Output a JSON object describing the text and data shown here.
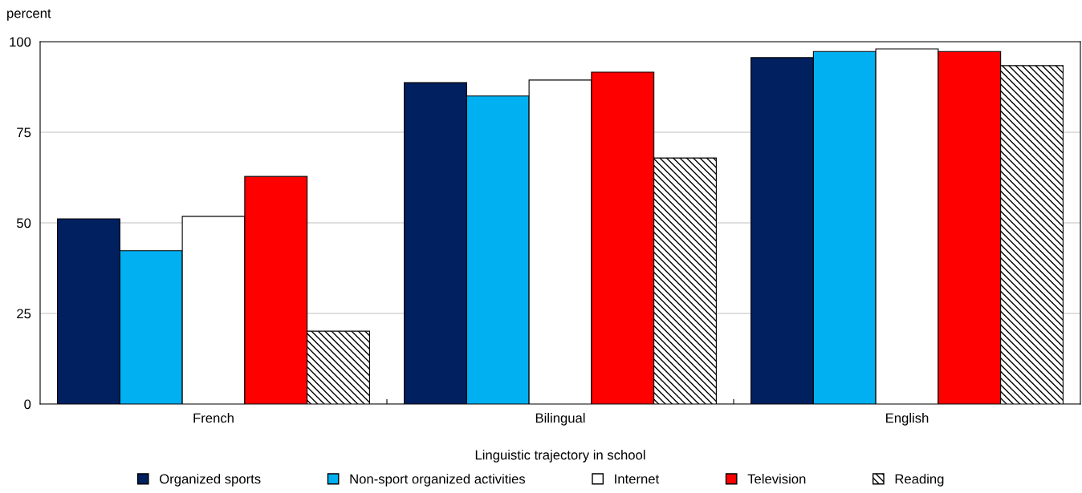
{
  "chart_data": {
    "type": "bar",
    "ylabel": "percent",
    "xlabel": "Linguistic trajectory in school",
    "categories": [
      "French",
      "Bilingual",
      "English"
    ],
    "series": [
      {
        "name": "Organized sports",
        "color": "#002060",
        "values": [
          51.1,
          88.7,
          95.6
        ]
      },
      {
        "name": "Non-sport organized activities",
        "color": "#00b0f0",
        "values": [
          42.3,
          85.0,
          97.3
        ]
      },
      {
        "name": "Internet",
        "color": "#ffffff",
        "values": [
          51.8,
          89.4,
          98.0
        ]
      },
      {
        "name": "Television",
        "color": "#ff0000",
        "values": [
          62.8,
          91.6,
          97.3
        ]
      },
      {
        "name": "Reading",
        "color": "#000000",
        "values": [
          20.1,
          67.9,
          93.4
        ]
      }
    ],
    "ylim": [
      0,
      100
    ],
    "yticks": [
      0,
      25,
      50,
      75,
      100
    ],
    "grid": "y",
    "legend": "bottom"
  }
}
